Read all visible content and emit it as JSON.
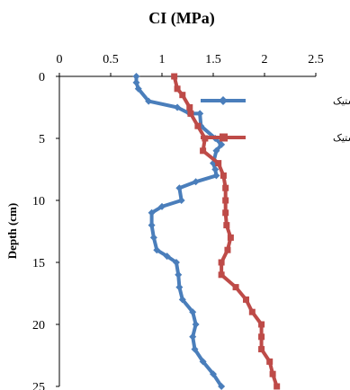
{
  "chart_data": {
    "type": "line",
    "title": "CI (MPa)",
    "xlabel": "CI (MPa)",
    "ylabel": "Depth (cm)",
    "xlim": [
      0,
      2.5
    ],
    "ylim": [
      0,
      25
    ],
    "y_inverted": true,
    "x_axis_position": "top",
    "x_ticks": [
      "0",
      "0.5",
      "1",
      "1.5",
      "2",
      "2.5"
    ],
    "y_ticks": [
      "0",
      "5",
      "10",
      "15",
      "20",
      "25"
    ],
    "grid": false,
    "legend_position": "top-right",
    "series": [
      {
        "name": "قبل از عبور لاستیک",
        "color": "#4a7ebb",
        "marker": "diamond",
        "points": [
          [
            0.75,
            0
          ],
          [
            0.75,
            0.5
          ],
          [
            0.77,
            1
          ],
          [
            0.87,
            2
          ],
          [
            1.15,
            2.5
          ],
          [
            1.27,
            3
          ],
          [
            1.37,
            3
          ],
          [
            1.38,
            4
          ],
          [
            1.52,
            5
          ],
          [
            1.58,
            5.5
          ],
          [
            1.53,
            6
          ],
          [
            1.5,
            7
          ],
          [
            1.52,
            7.5
          ],
          [
            1.53,
            8
          ],
          [
            1.33,
            8.5
          ],
          [
            1.17,
            9
          ],
          [
            1.19,
            10
          ],
          [
            1.0,
            10.5
          ],
          [
            0.9,
            11
          ],
          [
            0.9,
            12
          ],
          [
            0.92,
            13
          ],
          [
            0.95,
            14
          ],
          [
            1.05,
            14.5
          ],
          [
            1.14,
            15
          ],
          [
            1.16,
            16
          ],
          [
            1.17,
            17
          ],
          [
            1.2,
            18
          ],
          [
            1.3,
            19
          ],
          [
            1.33,
            20
          ],
          [
            1.3,
            21
          ],
          [
            1.32,
            22
          ],
          [
            1.4,
            23
          ],
          [
            1.5,
            24
          ],
          [
            1.58,
            25
          ]
        ]
      },
      {
        "name": "بعد از عبور لاستیک",
        "color": "#be4b48",
        "marker": "square",
        "points": [
          [
            1.12,
            0
          ],
          [
            1.15,
            1
          ],
          [
            1.2,
            1.5
          ],
          [
            1.27,
            2.5
          ],
          [
            1.28,
            3
          ],
          [
            1.35,
            4
          ],
          [
            1.42,
            5
          ],
          [
            1.4,
            6
          ],
          [
            1.55,
            7
          ],
          [
            1.6,
            8
          ],
          [
            1.62,
            9
          ],
          [
            1.62,
            10
          ],
          [
            1.62,
            11
          ],
          [
            1.63,
            12
          ],
          [
            1.67,
            13
          ],
          [
            1.64,
            14
          ],
          [
            1.58,
            15
          ],
          [
            1.58,
            16
          ],
          [
            1.72,
            17
          ],
          [
            1.82,
            18
          ],
          [
            1.88,
            19
          ],
          [
            1.97,
            20
          ],
          [
            1.97,
            21
          ],
          [
            1.97,
            22
          ],
          [
            2.05,
            23
          ],
          [
            2.08,
            24
          ],
          [
            2.12,
            25
          ]
        ]
      }
    ]
  }
}
